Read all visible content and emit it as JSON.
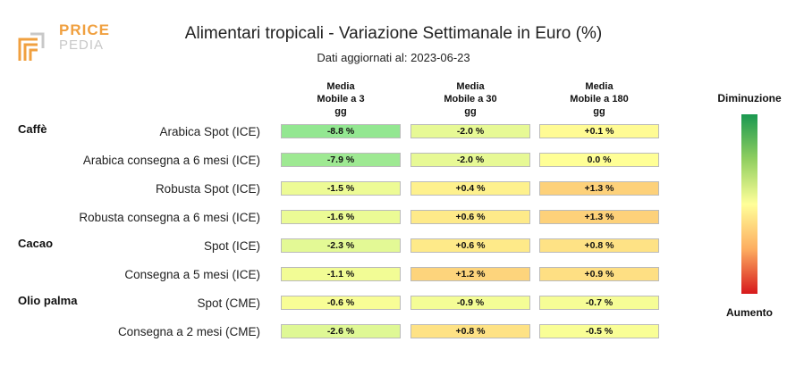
{
  "logo": {
    "line1": "PRICE",
    "line2": "PEDIA"
  },
  "chart_data": {
    "type": "table",
    "title": "Alimentari tropicali - Variazione Settimanale in Euro (%)",
    "subtitle": "Dati aggiornati al: 2023-06-23",
    "columns": [
      {
        "line1": "Media",
        "line2": "Mobile a 3",
        "line3": "gg"
      },
      {
        "line1": "Media",
        "line2": "Mobile a 30",
        "line3": "gg"
      },
      {
        "line1": "Media",
        "line2": "Mobile a 180",
        "line3": "gg"
      }
    ],
    "rows": [
      {
        "group": "Caffè",
        "label": "Arabica Spot (ICE)",
        "values": [
          -8.8,
          -2.0,
          0.1
        ],
        "texts": [
          "-8.8 %",
          "-2.0 %",
          "+0.1 %"
        ]
      },
      {
        "group": "",
        "label": "Arabica consegna a 6 mesi (ICE)",
        "values": [
          -7.9,
          -2.0,
          0.0
        ],
        "texts": [
          "-7.9 %",
          "-2.0 %",
          "0.0 %"
        ]
      },
      {
        "group": "",
        "label": "Robusta Spot (ICE)",
        "values": [
          -1.5,
          0.4,
          1.3
        ],
        "texts": [
          "-1.5 %",
          "+0.4 %",
          "+1.3 %"
        ]
      },
      {
        "group": "",
        "label": "Robusta consegna a 6 mesi (ICE)",
        "values": [
          -1.6,
          0.6,
          1.3
        ],
        "texts": [
          "-1.6 %",
          "+0.6 %",
          "+1.3 %"
        ]
      },
      {
        "group": "Cacao",
        "label": "Spot (ICE)",
        "values": [
          -2.3,
          0.6,
          0.8
        ],
        "texts": [
          "-2.3 %",
          "+0.6 %",
          "+0.8 %"
        ]
      },
      {
        "group": "",
        "label": "Consegna a 5 mesi (ICE)",
        "values": [
          -1.1,
          1.2,
          0.9
        ],
        "texts": [
          "-1.1 %",
          "+1.2 %",
          "+0.9 %"
        ]
      },
      {
        "group": "Olio palma",
        "label": "Spot (CME)",
        "values": [
          -0.6,
          -0.9,
          -0.7
        ],
        "texts": [
          "-0.6 %",
          "-0.9 %",
          "-0.7 %"
        ]
      },
      {
        "group": "",
        "label": "Consegna a 2 mesi (CME)",
        "values": [
          -2.6,
          0.8,
          -0.5
        ],
        "texts": [
          "-2.6 %",
          "+0.8 %",
          "-0.5 %"
        ]
      }
    ],
    "legend": {
      "top": "Diminuzione",
      "bottom": "Aumento"
    }
  }
}
